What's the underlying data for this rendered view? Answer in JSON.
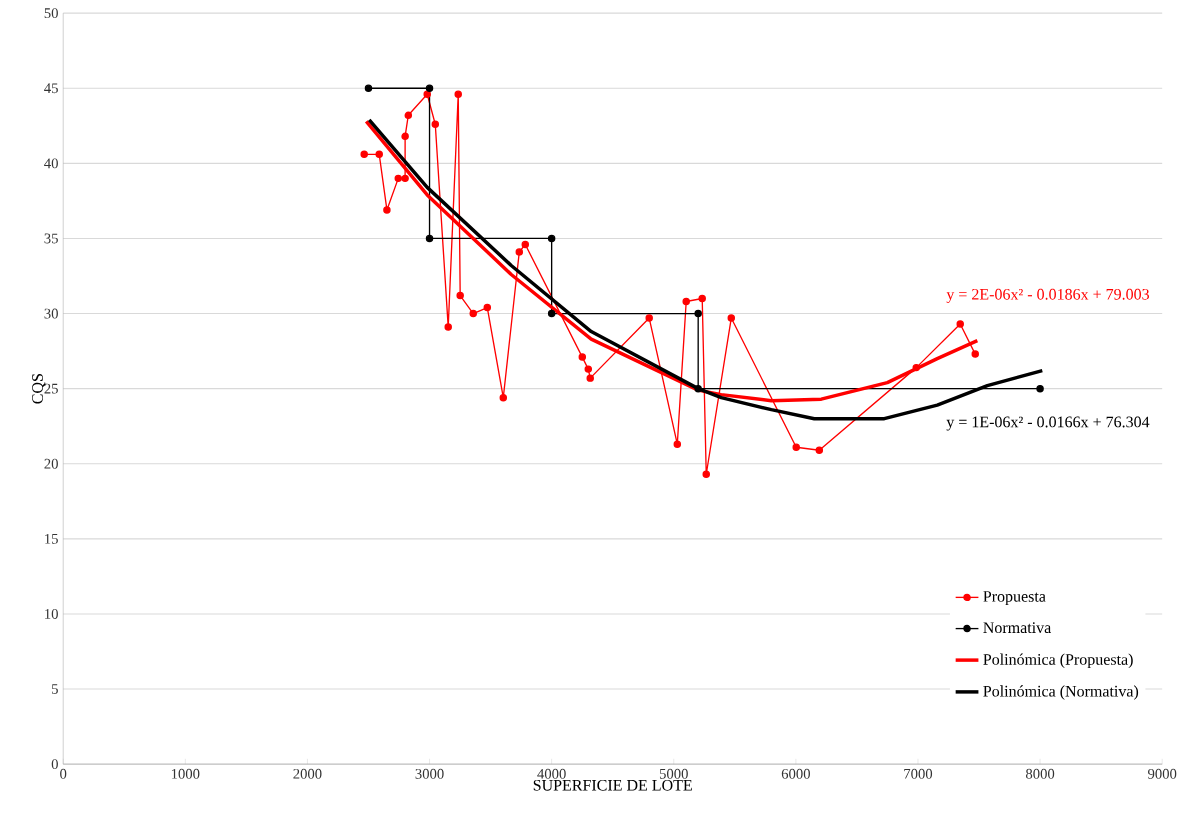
{
  "chart_data": {
    "type": "line",
    "xlabel": "SUPERFICIE DE LOTE",
    "ylabel": "CQS",
    "xlim": [
      0,
      9000
    ],
    "xticks": [
      0,
      1000,
      2000,
      3000,
      4000,
      5000,
      6000,
      7000,
      8000,
      9000
    ],
    "ylim": [
      0,
      50
    ],
    "yticks": [
      0,
      5,
      10,
      15,
      20,
      25,
      30,
      35,
      40,
      45,
      50
    ],
    "grid": "y",
    "legend": "bottom right",
    "series": [
      {
        "name": "Propuesta",
        "color": "#ff0000",
        "marker": "circle",
        "x": [
          2465,
          2588,
          2651,
          2744,
          2800,
          2800,
          2826,
          2981,
          3047,
          3153,
          3235,
          3251,
          3358,
          3473,
          3604,
          3735,
          3784,
          4251,
          4300,
          4316,
          4799,
          5029,
          5102,
          5233,
          5266,
          5471,
          6003,
          6192,
          6986,
          7346,
          7469
        ],
        "values": [
          40.6,
          40.6,
          36.9,
          39.0,
          39.0,
          41.8,
          43.2,
          44.6,
          42.6,
          29.1,
          44.6,
          31.2,
          30.0,
          30.4,
          24.4,
          34.1,
          34.6,
          27.1,
          26.3,
          25.7,
          29.7,
          21.3,
          30.8,
          31.0,
          19.3,
          29.7,
          21.1,
          20.9,
          26.4,
          29.3,
          27.3
        ]
      },
      {
        "name": "Normativa",
        "color": "#000000",
        "marker": "circle",
        "x": [
          2500,
          3000,
          3000,
          4000,
          4000,
          5200,
          5200,
          8000
        ],
        "values": [
          45,
          45,
          35,
          35,
          30,
          30,
          25,
          25
        ]
      },
      {
        "name": "Polinómica (Propuesta)",
        "color": "#ff0000",
        "marker": "none",
        "x": [
          2482,
          2981,
          3669,
          4324,
          5200,
          5389,
          5799,
          6208,
          6749,
          7158,
          7486
        ],
        "values": [
          42.8,
          37.9,
          32.6,
          28.3,
          24.9,
          24.6,
          24.2,
          24.3,
          25.4,
          27.0,
          28.2
        ]
      },
      {
        "name": "Polinómica (Normativa)",
        "color": "#000000",
        "marker": "none",
        "x": [
          2506,
          2981,
          3669,
          4324,
          5200,
          5389,
          5799,
          6151,
          6724,
          7158,
          7568,
          8018
        ],
        "values": [
          42.9,
          38.4,
          33.2,
          28.8,
          25.0,
          24.4,
          23.6,
          23.0,
          23.0,
          23.9,
          25.2,
          26.2
        ]
      }
    ],
    "annotations": [
      "y = 2E-06x² - 0.0186x + 79.003",
      "y = 1E-06x² - 0.0166x + 76.304"
    ]
  }
}
